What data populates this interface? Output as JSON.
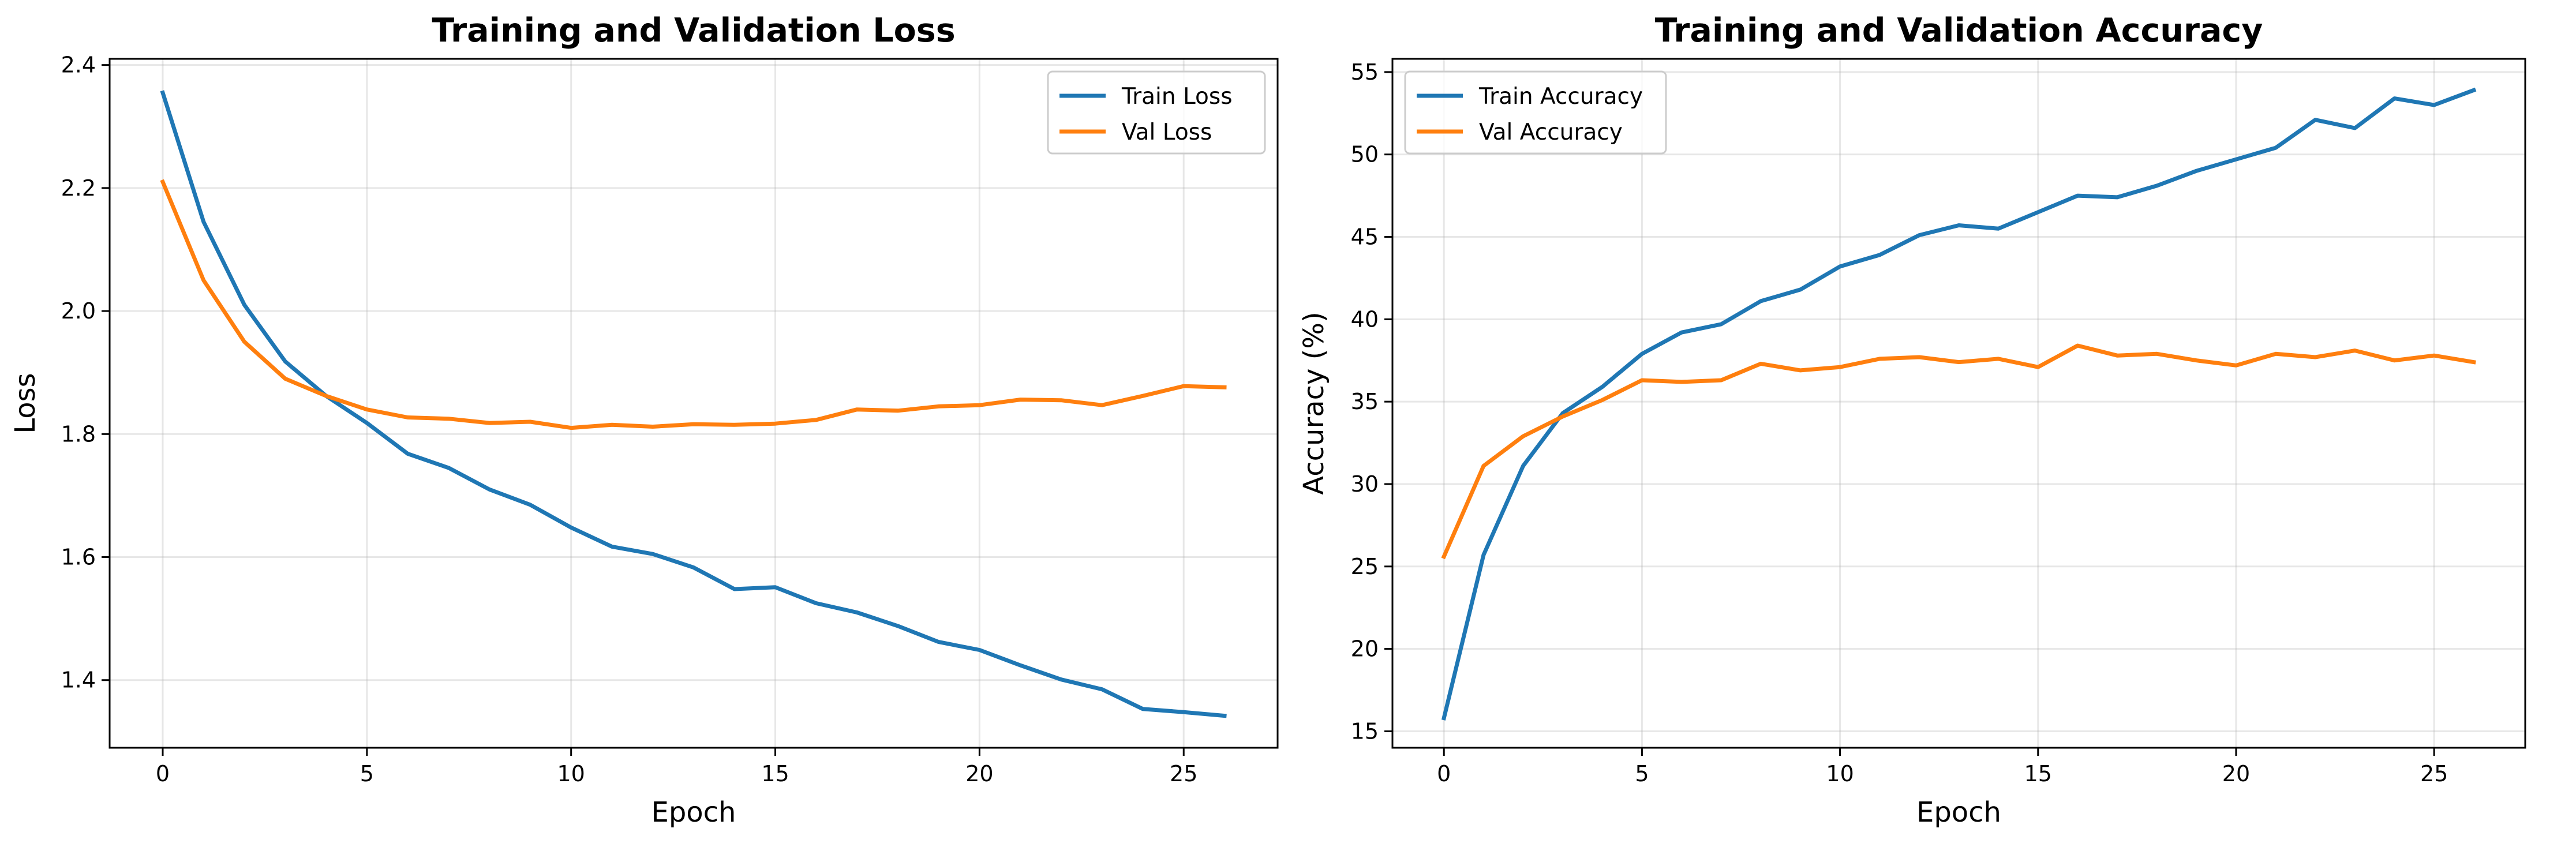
{
  "chart_data": [
    {
      "type": "line",
      "title": "Training and Validation Loss",
      "xlabel": "Epoch",
      "ylabel": "Loss",
      "xlim": [
        -1.3,
        27.3
      ],
      "ylim": [
        1.29,
        2.41
      ],
      "xticks": [
        0,
        5,
        10,
        15,
        20,
        25
      ],
      "yticks": [
        1.4,
        1.6,
        1.8,
        2.0,
        2.2,
        2.4
      ],
      "ytick_decimals": 1,
      "grid": true,
      "legend": "top-right",
      "x": [
        0,
        1,
        2,
        3,
        4,
        5,
        6,
        7,
        8,
        9,
        10,
        11,
        12,
        13,
        14,
        15,
        16,
        17,
        18,
        19,
        20,
        21,
        22,
        23,
        24,
        25,
        26
      ],
      "series": [
        {
          "name": "Train Loss",
          "color": "#1f77b4",
          "values": [
            2.355,
            2.145,
            2.01,
            1.918,
            1.862,
            1.818,
            1.768,
            1.745,
            1.71,
            1.685,
            1.648,
            1.617,
            1.605,
            1.583,
            1.548,
            1.551,
            1.525,
            1.51,
            1.488,
            1.462,
            1.449,
            1.424,
            1.401,
            1.385,
            1.353,
            1.348,
            1.342
          ]
        },
        {
          "name": "Val Loss",
          "color": "#ff7f0e",
          "values": [
            2.21,
            2.05,
            1.95,
            1.89,
            1.862,
            1.84,
            1.827,
            1.825,
            1.818,
            1.82,
            1.81,
            1.815,
            1.812,
            1.816,
            1.815,
            1.817,
            1.823,
            1.84,
            1.838,
            1.845,
            1.847,
            1.856,
            1.855,
            1.847,
            1.862,
            1.878,
            1.876
          ]
        }
      ]
    },
    {
      "type": "line",
      "title": "Training and Validation Accuracy",
      "xlabel": "Epoch",
      "ylabel": "Accuracy (%)",
      "xlim": [
        -1.3,
        27.3
      ],
      "ylim": [
        14.0,
        55.8
      ],
      "xticks": [
        0,
        5,
        10,
        15,
        20,
        25
      ],
      "yticks": [
        15,
        20,
        25,
        30,
        35,
        40,
        45,
        50,
        55
      ],
      "ytick_decimals": 0,
      "grid": true,
      "legend": "top-left",
      "x": [
        0,
        1,
        2,
        3,
        4,
        5,
        6,
        7,
        8,
        9,
        10,
        11,
        12,
        13,
        14,
        15,
        16,
        17,
        18,
        19,
        20,
        21,
        22,
        23,
        24,
        25,
        26
      ],
      "series": [
        {
          "name": "Train Accuracy",
          "color": "#1f77b4",
          "values": [
            15.8,
            25.7,
            31.1,
            34.3,
            35.9,
            37.9,
            39.2,
            39.7,
            41.1,
            41.8,
            43.2,
            43.9,
            45.1,
            45.7,
            45.5,
            46.5,
            47.5,
            47.4,
            48.1,
            49.0,
            49.7,
            50.4,
            52.1,
            51.6,
            53.4,
            53.0,
            53.9
          ]
        },
        {
          "name": "Val Accuracy",
          "color": "#ff7f0e",
          "values": [
            25.6,
            31.1,
            32.9,
            34.1,
            35.1,
            36.3,
            36.2,
            36.3,
            37.3,
            36.9,
            37.1,
            37.6,
            37.7,
            37.4,
            37.6,
            37.1,
            38.4,
            37.8,
            37.9,
            37.5,
            37.2,
            37.9,
            37.7,
            38.1,
            37.5,
            37.8,
            37.4
          ]
        }
      ]
    }
  ]
}
